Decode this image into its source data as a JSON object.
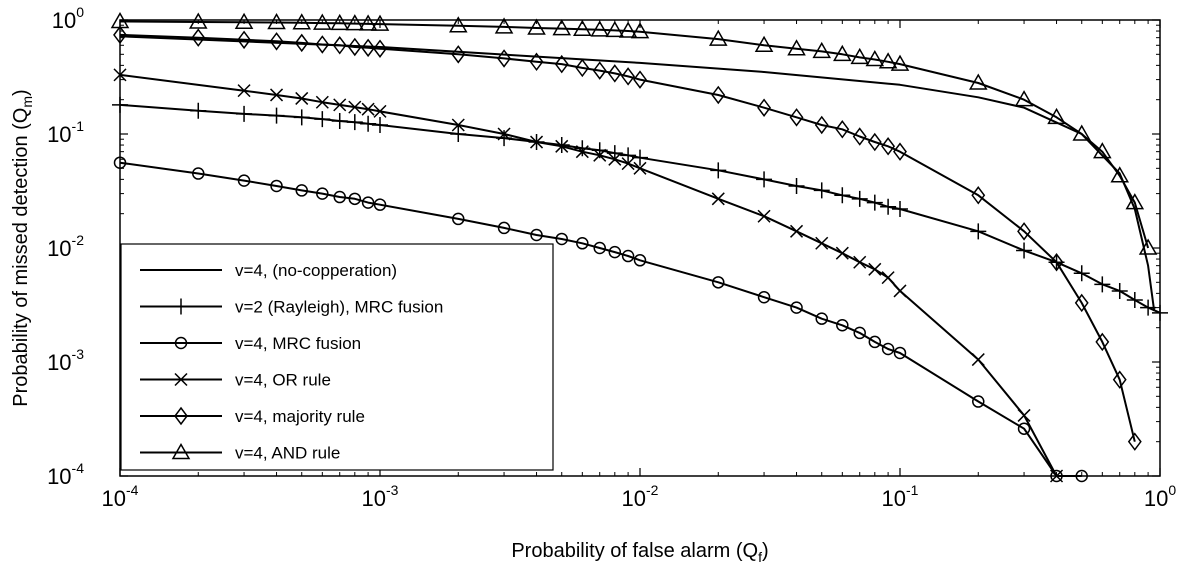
{
  "chart_data": {
    "type": "line",
    "xlabel": "Probability of false alarm (Q",
    "xlabel_sub": "f",
    "xlabel_end": ")",
    "ylabel": "Probability of missed detection (Q",
    "ylabel_sub": "m",
    "ylabel_end": ")",
    "x_scale": "log",
    "y_scale": "log",
    "xlim": [
      0.0001,
      1
    ],
    "ylim": [
      0.0001,
      1
    ],
    "grid": false,
    "legend_position": "bottom-left",
    "x_ticks": [
      {
        "base": "10",
        "exp": "-4",
        "value": 0.0001
      },
      {
        "base": "10",
        "exp": "-3",
        "value": 0.001
      },
      {
        "base": "10",
        "exp": "-2",
        "value": 0.01
      },
      {
        "base": "10",
        "exp": "-1",
        "value": 0.1
      },
      {
        "base": "10",
        "exp": "0",
        "value": 1
      }
    ],
    "y_ticks": [
      {
        "base": "10",
        "exp": "-4",
        "value": 0.0001
      },
      {
        "base": "10",
        "exp": "-3",
        "value": 0.001
      },
      {
        "base": "10",
        "exp": "-2",
        "value": 0.01
      },
      {
        "base": "10",
        "exp": "-1",
        "value": 0.1
      },
      {
        "base": "10",
        "exp": "0",
        "value": 1
      }
    ],
    "series": [
      {
        "name": "v=4, (no-copperation)",
        "marker": "none",
        "points": [
          [
            0.0001,
            0.72
          ],
          [
            0.001,
            0.58
          ],
          [
            0.01,
            0.42
          ],
          [
            0.03,
            0.35
          ],
          [
            0.1,
            0.27
          ],
          [
            0.2,
            0.21
          ],
          [
            0.3,
            0.17
          ],
          [
            0.5,
            0.1
          ],
          [
            0.7,
            0.045
          ],
          [
            0.8,
            0.022
          ],
          [
            0.9,
            0.007
          ],
          [
            0.95,
            0.0028
          ]
        ]
      },
      {
        "name": "v=2 (Rayleigh), MRC fusion",
        "marker": "plus",
        "points": [
          [
            0.0001,
            0.18
          ],
          [
            0.0002,
            0.16
          ],
          [
            0.0003,
            0.15
          ],
          [
            0.0004,
            0.145
          ],
          [
            0.0005,
            0.14
          ],
          [
            0.0006,
            0.135
          ],
          [
            0.0007,
            0.13
          ],
          [
            0.0008,
            0.127
          ],
          [
            0.0009,
            0.123
          ],
          [
            0.001,
            0.12
          ],
          [
            0.002,
            0.1
          ],
          [
            0.003,
            0.092
          ],
          [
            0.004,
            0.085
          ],
          [
            0.005,
            0.08
          ],
          [
            0.006,
            0.075
          ],
          [
            0.007,
            0.072
          ],
          [
            0.008,
            0.068
          ],
          [
            0.009,
            0.065
          ],
          [
            0.01,
            0.062
          ],
          [
            0.02,
            0.048
          ],
          [
            0.03,
            0.04
          ],
          [
            0.04,
            0.035
          ],
          [
            0.05,
            0.032
          ],
          [
            0.06,
            0.029
          ],
          [
            0.07,
            0.027
          ],
          [
            0.08,
            0.025
          ],
          [
            0.09,
            0.023
          ],
          [
            0.1,
            0.022
          ],
          [
            0.2,
            0.014
          ],
          [
            0.3,
            0.0095
          ],
          [
            0.4,
            0.0075
          ],
          [
            0.5,
            0.006
          ],
          [
            0.6,
            0.0048
          ],
          [
            0.7,
            0.0042
          ],
          [
            0.8,
            0.0035
          ],
          [
            0.9,
            0.003
          ],
          [
            1.0,
            0.0027
          ]
        ]
      },
      {
        "name": "v=4, MRC fusion",
        "marker": "circle",
        "points": [
          [
            0.0001,
            0.056
          ],
          [
            0.0002,
            0.045
          ],
          [
            0.0003,
            0.039
          ],
          [
            0.0004,
            0.035
          ],
          [
            0.0005,
            0.032
          ],
          [
            0.0006,
            0.03
          ],
          [
            0.0007,
            0.028
          ],
          [
            0.0008,
            0.027
          ],
          [
            0.0009,
            0.025
          ],
          [
            0.001,
            0.024
          ],
          [
            0.002,
            0.018
          ],
          [
            0.003,
            0.015
          ],
          [
            0.004,
            0.013
          ],
          [
            0.005,
            0.012
          ],
          [
            0.006,
            0.011
          ],
          [
            0.007,
            0.01
          ],
          [
            0.008,
            0.0092
          ],
          [
            0.009,
            0.0085
          ],
          [
            0.01,
            0.0078
          ],
          [
            0.02,
            0.005
          ],
          [
            0.03,
            0.0037
          ],
          [
            0.04,
            0.003
          ],
          [
            0.05,
            0.0024
          ],
          [
            0.06,
            0.0021
          ],
          [
            0.07,
            0.0018
          ],
          [
            0.08,
            0.0015
          ],
          [
            0.09,
            0.0013
          ],
          [
            0.1,
            0.0012
          ],
          [
            0.2,
            0.00045
          ],
          [
            0.3,
            0.00026
          ],
          [
            0.4,
            0.0001
          ],
          [
            0.5,
            0.0001
          ]
        ]
      },
      {
        "name": "v=4, OR rule",
        "marker": "x",
        "points": [
          [
            0.0001,
            0.33
          ],
          [
            0.0003,
            0.24
          ],
          [
            0.0004,
            0.22
          ],
          [
            0.0005,
            0.205
          ],
          [
            0.0006,
            0.19
          ],
          [
            0.0007,
            0.18
          ],
          [
            0.0008,
            0.172
          ],
          [
            0.0009,
            0.165
          ],
          [
            0.001,
            0.158
          ],
          [
            0.002,
            0.12
          ],
          [
            0.003,
            0.1
          ],
          [
            0.004,
            0.085
          ],
          [
            0.005,
            0.078
          ],
          [
            0.006,
            0.07
          ],
          [
            0.007,
            0.065
          ],
          [
            0.008,
            0.06
          ],
          [
            0.009,
            0.055
          ],
          [
            0.01,
            0.05
          ],
          [
            0.02,
            0.027
          ],
          [
            0.03,
            0.019
          ],
          [
            0.04,
            0.014
          ],
          [
            0.05,
            0.011
          ],
          [
            0.06,
            0.009
          ],
          [
            0.07,
            0.0075
          ],
          [
            0.08,
            0.0065
          ],
          [
            0.09,
            0.0055
          ],
          [
            0.1,
            0.0042
          ],
          [
            0.2,
            0.00105
          ],
          [
            0.3,
            0.00034
          ],
          [
            0.4,
            0.0001
          ]
        ]
      },
      {
        "name": "v=4, majority rule",
        "marker": "diamond",
        "points": [
          [
            0.0001,
            0.74
          ],
          [
            0.0002,
            0.7
          ],
          [
            0.0003,
            0.67
          ],
          [
            0.0004,
            0.65
          ],
          [
            0.0005,
            0.63
          ],
          [
            0.0006,
            0.61
          ],
          [
            0.0007,
            0.6
          ],
          [
            0.0008,
            0.58
          ],
          [
            0.0009,
            0.57
          ],
          [
            0.001,
            0.56
          ],
          [
            0.002,
            0.5
          ],
          [
            0.003,
            0.46
          ],
          [
            0.004,
            0.43
          ],
          [
            0.005,
            0.41
          ],
          [
            0.006,
            0.38
          ],
          [
            0.007,
            0.36
          ],
          [
            0.008,
            0.34
          ],
          [
            0.009,
            0.32
          ],
          [
            0.01,
            0.3
          ],
          [
            0.02,
            0.22
          ],
          [
            0.03,
            0.17
          ],
          [
            0.04,
            0.14
          ],
          [
            0.05,
            0.12
          ],
          [
            0.06,
            0.11
          ],
          [
            0.07,
            0.095
          ],
          [
            0.08,
            0.085
          ],
          [
            0.09,
            0.078
          ],
          [
            0.1,
            0.07
          ],
          [
            0.2,
            0.029
          ],
          [
            0.3,
            0.014
          ],
          [
            0.4,
            0.0075
          ],
          [
            0.5,
            0.0033
          ],
          [
            0.6,
            0.0015
          ],
          [
            0.7,
            0.0007
          ],
          [
            0.8,
            0.0002
          ]
        ]
      },
      {
        "name": "v=4, AND rule",
        "marker": "triangle",
        "points": [
          [
            0.0001,
            0.97
          ],
          [
            0.0002,
            0.96
          ],
          [
            0.0003,
            0.955
          ],
          [
            0.0004,
            0.95
          ],
          [
            0.0005,
            0.945
          ],
          [
            0.0006,
            0.94
          ],
          [
            0.0007,
            0.935
          ],
          [
            0.0008,
            0.93
          ],
          [
            0.0009,
            0.925
          ],
          [
            0.001,
            0.92
          ],
          [
            0.002,
            0.89
          ],
          [
            0.003,
            0.87
          ],
          [
            0.004,
            0.85
          ],
          [
            0.005,
            0.84
          ],
          [
            0.006,
            0.83
          ],
          [
            0.007,
            0.82
          ],
          [
            0.008,
            0.81
          ],
          [
            0.009,
            0.8
          ],
          [
            0.01,
            0.79
          ],
          [
            0.02,
            0.68
          ],
          [
            0.03,
            0.6
          ],
          [
            0.04,
            0.56
          ],
          [
            0.05,
            0.53
          ],
          [
            0.06,
            0.5
          ],
          [
            0.07,
            0.47
          ],
          [
            0.08,
            0.45
          ],
          [
            0.09,
            0.43
          ],
          [
            0.1,
            0.41
          ],
          [
            0.2,
            0.28
          ],
          [
            0.3,
            0.2
          ],
          [
            0.4,
            0.14
          ],
          [
            0.5,
            0.1
          ],
          [
            0.6,
            0.07
          ],
          [
            0.7,
            0.043
          ],
          [
            0.8,
            0.025
          ],
          [
            0.9,
            0.01
          ]
        ]
      }
    ]
  }
}
